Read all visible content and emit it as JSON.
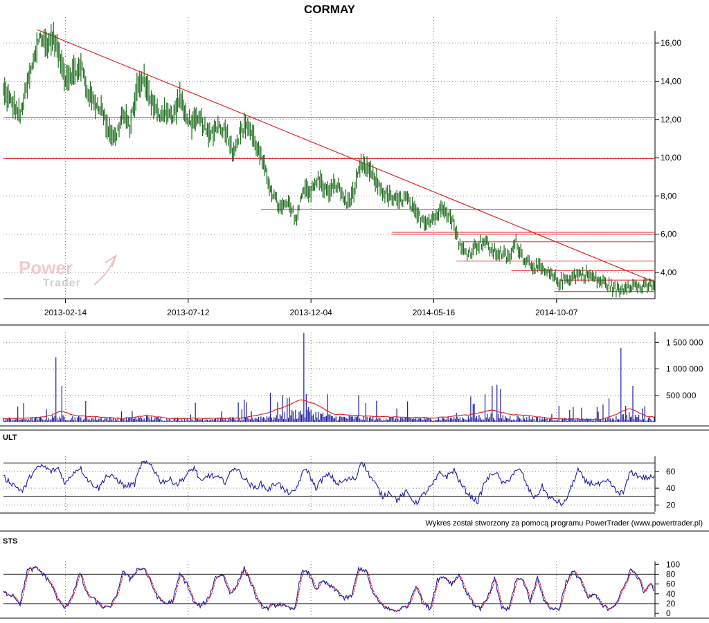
{
  "title": "CORMAY",
  "credit": "Wykres został stworzony za pomocą programu PowerTrader (www.powertrader.pl)",
  "watermark": {
    "line1": "Power",
    "line2": "Trader"
  },
  "colors": {
    "price": "#1a6a1a",
    "trend": "#e02020",
    "volume": "#1a1aa0",
    "volume_avg": "#e02020",
    "ult": "#1a1aa0",
    "sts_k": "#1a1aa0",
    "sts_d": "#e02020",
    "grid": "#808080"
  },
  "chart_data": [
    {
      "name": "price",
      "type": "line",
      "x_labels": [
        "2013-02-14",
        "2013-07-12",
        "2013-12-04",
        "2014-05-16",
        "2014-10-07"
      ],
      "x_label_index": [
        52,
        155,
        258,
        361,
        464
      ],
      "ylim": [
        2.7,
        16.8
      ],
      "y_ticks": [
        "16,00",
        "14,00",
        "12,00",
        "10,00",
        "8,00",
        "6,00",
        "4,00"
      ],
      "y_tick_values": [
        16,
        14,
        12,
        10,
        8,
        6,
        4
      ],
      "anchors": [
        [
          0,
          13.5
        ],
        [
          10,
          12.6
        ],
        [
          14,
          12.2
        ],
        [
          20,
          13.8
        ],
        [
          26,
          15.2
        ],
        [
          30,
          16.4
        ],
        [
          36,
          15.9
        ],
        [
          42,
          16.3
        ],
        [
          46,
          15.5
        ],
        [
          52,
          14.2
        ],
        [
          58,
          14.4
        ],
        [
          66,
          14.7
        ],
        [
          70,
          13.5
        ],
        [
          76,
          12.9
        ],
        [
          82,
          12.6
        ],
        [
          88,
          11.5
        ],
        [
          94,
          11.0
        ],
        [
          100,
          12.3
        ],
        [
          106,
          11.6
        ],
        [
          112,
          13.6
        ],
        [
          118,
          14.1
        ],
        [
          124,
          13.0
        ],
        [
          130,
          12.2
        ],
        [
          136,
          12.5
        ],
        [
          142,
          12.1
        ],
        [
          148,
          13.2
        ],
        [
          152,
          12.3
        ],
        [
          158,
          11.8
        ],
        [
          166,
          12.0
        ],
        [
          172,
          11.1
        ],
        [
          180,
          11.7
        ],
        [
          188,
          11.3
        ],
        [
          192,
          10.3
        ],
        [
          198,
          11.2
        ],
        [
          204,
          11.8
        ],
        [
          210,
          11.0
        ],
        [
          216,
          10.0
        ],
        [
          222,
          8.8
        ],
        [
          228,
          7.8
        ],
        [
          233,
          7.3
        ],
        [
          238,
          7.6
        ],
        [
          242,
          7.2
        ],
        [
          246,
          6.8
        ],
        [
          252,
          8.5
        ],
        [
          258,
          8.2
        ],
        [
          264,
          8.9
        ],
        [
          272,
          8.2
        ],
        [
          280,
          8.6
        ],
        [
          288,
          7.6
        ],
        [
          294,
          8.2
        ],
        [
          300,
          9.6
        ],
        [
          306,
          9.4
        ],
        [
          312,
          8.8
        ],
        [
          320,
          8.1
        ],
        [
          330,
          7.7
        ],
        [
          338,
          7.9
        ],
        [
          346,
          7.0
        ],
        [
          354,
          6.7
        ],
        [
          362,
          6.9
        ],
        [
          370,
          7.5
        ],
        [
          378,
          6.5
        ],
        [
          384,
          5.2
        ],
        [
          390,
          5.0
        ],
        [
          398,
          5.5
        ],
        [
          404,
          5.6
        ],
        [
          410,
          5.1
        ],
        [
          418,
          5.0
        ],
        [
          424,
          4.7
        ],
        [
          430,
          5.6
        ],
        [
          436,
          4.8
        ],
        [
          444,
          4.4
        ],
        [
          452,
          4.1
        ],
        [
          460,
          3.8
        ],
        [
          466,
          3.5
        ],
        [
          474,
          3.7
        ],
        [
          482,
          3.9
        ],
        [
          490,
          3.9
        ],
        [
          498,
          3.6
        ],
        [
          506,
          3.4
        ],
        [
          514,
          3.1
        ],
        [
          518,
          3.1
        ],
        [
          524,
          3.4
        ],
        [
          530,
          3.3
        ],
        [
          536,
          3.2
        ],
        [
          542,
          3.3
        ],
        [
          546,
          3.4
        ]
      ],
      "trend_line": [
        [
          28,
          16.7
        ],
        [
          546,
          3.5
        ]
      ],
      "levels": [
        {
          "from": 0,
          "to": 546,
          "value": 12.1
        },
        {
          "from": 0,
          "to": 546,
          "value": 9.95
        },
        {
          "from": 216,
          "to": 546,
          "value": 7.3
        },
        {
          "from": 326,
          "to": 546,
          "value": 6.1
        },
        {
          "from": 326,
          "to": 546,
          "value": 6.0
        },
        {
          "from": 384,
          "to": 546,
          "value": 5.6
        },
        {
          "from": 380,
          "to": 546,
          "value": 4.6
        },
        {
          "from": 426,
          "to": 546,
          "value": 4.1
        },
        {
          "from": 466,
          "to": 546,
          "value": 3.6
        },
        {
          "from": 462,
          "to": 546,
          "value": 3.0
        }
      ]
    },
    {
      "name": "volume",
      "type": "bar",
      "ylim": [
        0,
        1700000
      ],
      "y_ticks": [
        "1 500 000",
        "1 000 000",
        "500 000"
      ],
      "y_tick_values": [
        1500000,
        1000000,
        500000
      ],
      "spikes": [
        [
          44,
          1220000
        ],
        [
          252,
          1680000
        ],
        [
          256,
          280000
        ],
        [
          272,
          520000
        ],
        [
          224,
          550000
        ],
        [
          238,
          450000
        ],
        [
          252,
          1680000
        ],
        [
          298,
          500000
        ],
        [
          392,
          480000
        ],
        [
          410,
          680000
        ],
        [
          414,
          700000
        ],
        [
          404,
          520000
        ],
        [
          518,
          1400000
        ],
        [
          522,
          300000
        ],
        [
          536,
          250000
        ]
      ],
      "baseline": 80000,
      "avg_anchors": [
        [
          0,
          60000
        ],
        [
          30,
          80000
        ],
        [
          40,
          120000
        ],
        [
          48,
          200000
        ],
        [
          60,
          120000
        ],
        [
          100,
          60000
        ],
        [
          120,
          120000
        ],
        [
          140,
          60000
        ],
        [
          200,
          70000
        ],
        [
          220,
          160000
        ],
        [
          235,
          280000
        ],
        [
          250,
          420000
        ],
        [
          262,
          330000
        ],
        [
          276,
          150000
        ],
        [
          300,
          110000
        ],
        [
          330,
          90000
        ],
        [
          360,
          70000
        ],
        [
          390,
          130000
        ],
        [
          410,
          220000
        ],
        [
          425,
          140000
        ],
        [
          440,
          120000
        ],
        [
          460,
          60000
        ],
        [
          500,
          40000
        ],
        [
          512,
          120000
        ],
        [
          525,
          260000
        ],
        [
          540,
          100000
        ],
        [
          546,
          90000
        ]
      ]
    },
    {
      "name": "ULT",
      "type": "line",
      "label": "ULT",
      "ylim": [
        12,
        78
      ],
      "y_ticks": [
        "60",
        "40",
        "20"
      ],
      "y_tick_values": [
        60,
        40,
        20
      ],
      "ref_lines": [
        70,
        30
      ],
      "anchors": [
        [
          0,
          53
        ],
        [
          8,
          45
        ],
        [
          16,
          36
        ],
        [
          24,
          58
        ],
        [
          32,
          67
        ],
        [
          40,
          60
        ],
        [
          46,
          64
        ],
        [
          52,
          45
        ],
        [
          58,
          58
        ],
        [
          64,
          65
        ],
        [
          72,
          48
        ],
        [
          80,
          40
        ],
        [
          86,
          55
        ],
        [
          94,
          52
        ],
        [
          102,
          42
        ],
        [
          110,
          45
        ],
        [
          116,
          70
        ],
        [
          124,
          68
        ],
        [
          132,
          48
        ],
        [
          140,
          50
        ],
        [
          146,
          45
        ],
        [
          152,
          53
        ],
        [
          160,
          65
        ],
        [
          166,
          46
        ],
        [
          172,
          56
        ],
        [
          180,
          52
        ],
        [
          186,
          48
        ],
        [
          194,
          66
        ],
        [
          202,
          52
        ],
        [
          210,
          40
        ],
        [
          216,
          45
        ],
        [
          222,
          38
        ],
        [
          230,
          48
        ],
        [
          236,
          36
        ],
        [
          244,
          34
        ],
        [
          250,
          55
        ],
        [
          254,
          64
        ],
        [
          262,
          40
        ],
        [
          268,
          52
        ],
        [
          274,
          56
        ],
        [
          280,
          45
        ],
        [
          288,
          50
        ],
        [
          296,
          52
        ],
        [
          300,
          74
        ],
        [
          306,
          58
        ],
        [
          312,
          45
        ],
        [
          318,
          30
        ],
        [
          324,
          36
        ],
        [
          330,
          26
        ],
        [
          338,
          35
        ],
        [
          346,
          22
        ],
        [
          354,
          35
        ],
        [
          360,
          44
        ],
        [
          366,
          58
        ],
        [
          372,
          54
        ],
        [
          378,
          62
        ],
        [
          384,
          44
        ],
        [
          392,
          30
        ],
        [
          398,
          24
        ],
        [
          404,
          48
        ],
        [
          412,
          60
        ],
        [
          420,
          44
        ],
        [
          428,
          58
        ],
        [
          434,
          62
        ],
        [
          440,
          40
        ],
        [
          446,
          28
        ],
        [
          452,
          42
        ],
        [
          458,
          28
        ],
        [
          464,
          25
        ],
        [
          470,
          20
        ],
        [
          476,
          40
        ],
        [
          482,
          62
        ],
        [
          488,
          48
        ],
        [
          494,
          46
        ],
        [
          500,
          44
        ],
        [
          508,
          48
        ],
        [
          514,
          36
        ],
        [
          520,
          34
        ],
        [
          526,
          60
        ],
        [
          532,
          55
        ],
        [
          538,
          52
        ],
        [
          546,
          53
        ]
      ]
    },
    {
      "name": "STS",
      "type": "line",
      "label": "STS",
      "ylim": [
        -4,
        106
      ],
      "y_ticks": [
        "100",
        "80",
        "60",
        "40",
        "20",
        "0"
      ],
      "y_tick_values": [
        100,
        80,
        60,
        40,
        20,
        0
      ],
      "ref_lines": [
        80,
        20
      ],
      "k_anchors": [
        [
          0,
          42
        ],
        [
          8,
          38
        ],
        [
          14,
          20
        ],
        [
          20,
          88
        ],
        [
          28,
          92
        ],
        [
          34,
          78
        ],
        [
          40,
          60
        ],
        [
          46,
          25
        ],
        [
          52,
          10
        ],
        [
          58,
          40
        ],
        [
          64,
          82
        ],
        [
          70,
          40
        ],
        [
          76,
          28
        ],
        [
          82,
          15
        ],
        [
          88,
          10
        ],
        [
          94,
          30
        ],
        [
          100,
          85
        ],
        [
          106,
          70
        ],
        [
          112,
          90
        ],
        [
          118,
          92
        ],
        [
          124,
          60
        ],
        [
          130,
          30
        ],
        [
          136,
          20
        ],
        [
          142,
          25
        ],
        [
          148,
          80
        ],
        [
          154,
          60
        ],
        [
          160,
          20
        ],
        [
          166,
          15
        ],
        [
          172,
          30
        ],
        [
          178,
          75
        ],
        [
          184,
          80
        ],
        [
          190,
          40
        ],
        [
          196,
          60
        ],
        [
          202,
          92
        ],
        [
          208,
          60
        ],
        [
          214,
          20
        ],
        [
          220,
          10
        ],
        [
          226,
          15
        ],
        [
          232,
          20
        ],
        [
          238,
          10
        ],
        [
          244,
          8
        ],
        [
          250,
          85
        ],
        [
          256,
          82
        ],
        [
          262,
          50
        ],
        [
          268,
          65
        ],
        [
          274,
          55
        ],
        [
          280,
          45
        ],
        [
          286,
          30
        ],
        [
          292,
          35
        ],
        [
          298,
          92
        ],
        [
          304,
          88
        ],
        [
          310,
          40
        ],
        [
          316,
          20
        ],
        [
          322,
          10
        ],
        [
          328,
          5
        ],
        [
          334,
          10
        ],
        [
          340,
          18
        ],
        [
          346,
          60
        ],
        [
          352,
          20
        ],
        [
          358,
          10
        ],
        [
          364,
          70
        ],
        [
          370,
          75
        ],
        [
          376,
          60
        ],
        [
          382,
          80
        ],
        [
          388,
          45
        ],
        [
          394,
          20
        ],
        [
          400,
          10
        ],
        [
          406,
          30
        ],
        [
          412,
          70
        ],
        [
          418,
          12
        ],
        [
          424,
          8
        ],
        [
          430,
          70
        ],
        [
          436,
          68
        ],
        [
          442,
          25
        ],
        [
          448,
          75
        ],
        [
          454,
          22
        ],
        [
          460,
          10
        ],
        [
          466,
          8
        ],
        [
          472,
          65
        ],
        [
          478,
          85
        ],
        [
          484,
          70
        ],
        [
          490,
          30
        ],
        [
          496,
          40
        ],
        [
          502,
          15
        ],
        [
          508,
          10
        ],
        [
          514,
          22
        ],
        [
          520,
          50
        ],
        [
          526,
          90
        ],
        [
          532,
          75
        ],
        [
          538,
          40
        ],
        [
          542,
          62
        ],
        [
          546,
          48
        ]
      ]
    }
  ]
}
